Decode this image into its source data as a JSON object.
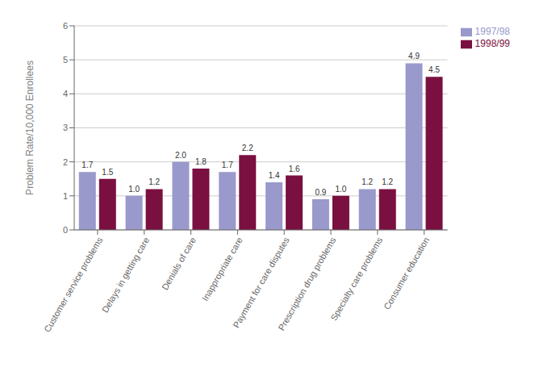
{
  "chart_data": {
    "type": "bar",
    "categories": [
      "Customer service problems",
      "Delays in getting care",
      "Denials of care",
      "Inappropriate care",
      "Payment for care disputes",
      "Prescription drug problems",
      "Specialty care problems",
      "Consumer education"
    ],
    "series": [
      {
        "name": "1997/98",
        "color": "#9999cc",
        "values": [
          1.7,
          1.0,
          2.0,
          1.7,
          1.4,
          0.9,
          1.2,
          4.9
        ],
        "value_labels": [
          "1.7",
          "1.0",
          "2.0",
          "1.7",
          "1.4",
          "0.9",
          "1.2",
          "4.9"
        ]
      },
      {
        "name": "1998/99",
        "color": "#7a1040",
        "values": [
          1.5,
          1.2,
          1.8,
          2.2,
          1.6,
          1.0,
          1.2,
          4.5
        ],
        "value_labels": [
          "1.5",
          "1.2",
          "1.8",
          "2.2",
          "1.6",
          "1.0",
          "1.2",
          "4.5"
        ]
      }
    ],
    "ylabel": "Problem Rate/10,000 Enrollees",
    "ylim": [
      0,
      6
    ],
    "yticks": [
      0,
      1,
      2,
      3,
      4,
      5,
      6
    ],
    "grid": true,
    "legend": "right",
    "data_labels": true
  }
}
